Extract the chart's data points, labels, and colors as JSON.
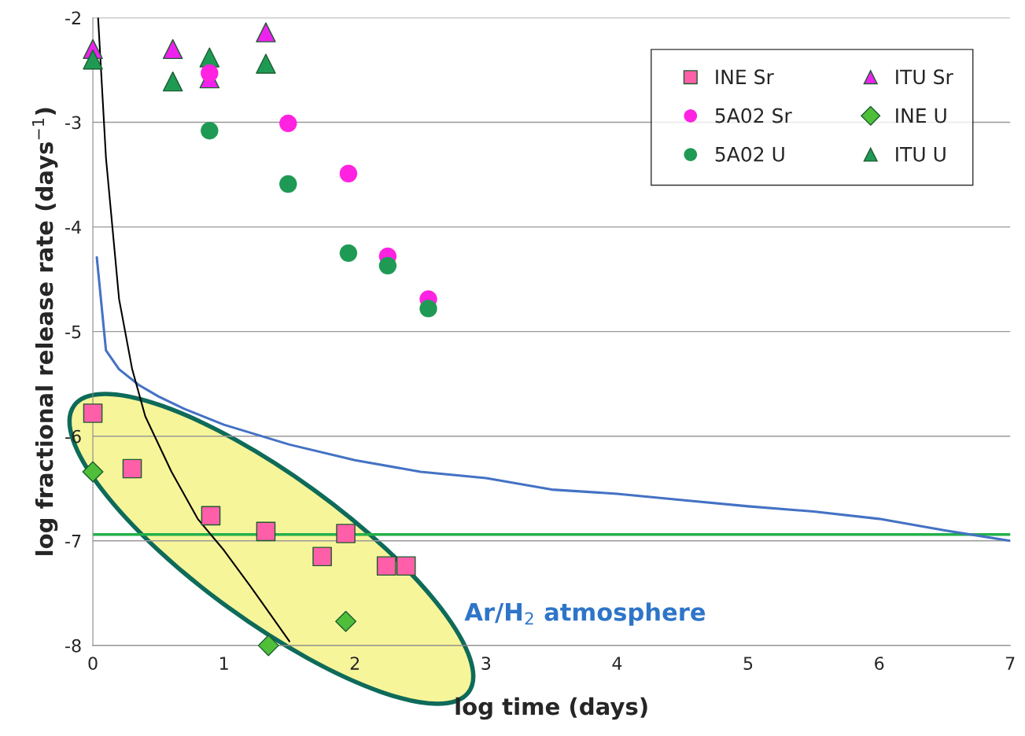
{
  "chart_data": {
    "type": "scatter",
    "xlabel": "log time (days)",
    "ylabel": "log fractional release rate (days$^{−1}$)",
    "xlim": [
      0,
      7
    ],
    "ylim": [
      -8,
      -2
    ],
    "xticks": [
      0,
      1,
      2,
      3,
      4,
      5,
      6,
      7
    ],
    "yticks": [
      -8,
      -7,
      -6,
      -5,
      -4,
      -3,
      -2
    ],
    "grid": "y",
    "legend": "top right",
    "series": [
      {
        "name": "INE Sr",
        "color": "#ff5fa8",
        "marker": "square",
        "x": [
          0,
          0.3,
          0.9,
          1.32,
          1.75,
          1.93,
          2.24,
          2.39
        ],
        "values": [
          -5.78,
          -6.31,
          -6.76,
          -6.91,
          -7.15,
          -6.93,
          -7.24,
          -7.24
        ]
      },
      {
        "name": "5A02 Sr",
        "color": "#ff22e0",
        "marker": "circle",
        "x": [
          0.89,
          1.49,
          1.95,
          2.25,
          2.56
        ],
        "values": [
          -2.53,
          -3.01,
          -3.49,
          -4.28,
          -4.69
        ]
      },
      {
        "name": "5A02 U",
        "color": "#1f9a55",
        "marker": "circle",
        "x": [
          0.89,
          1.49,
          1.95,
          2.25,
          2.56
        ],
        "values": [
          -3.08,
          -3.59,
          -4.25,
          -4.37,
          -4.78
        ]
      },
      {
        "name": "ITU Sr",
        "color": "#ee22ee",
        "marker": "triangle",
        "x": [
          0,
          0.61,
          0.89,
          1.32
        ],
        "values": [
          -2.3,
          -2.3,
          -2.58,
          -2.14
        ]
      },
      {
        "name": "INE U",
        "color": "#4fbf3a",
        "marker": "diamond",
        "x": [
          0,
          1.34,
          1.93
        ],
        "values": [
          -6.34,
          -8.0,
          -7.77
        ]
      },
      {
        "name": "ITU U",
        "color": "#1f9a55",
        "marker": "triangle",
        "x": [
          0,
          0.61,
          0.89,
          1.32
        ],
        "values": [
          -2.4,
          -2.61,
          -2.38,
          -2.44
        ]
      },
      {
        "type": "line",
        "color": "#4472c4",
        "x": [
          0.03,
          0.1,
          0.2,
          0.35,
          0.5,
          0.7,
          1,
          1.5,
          2,
          2.5,
          3,
          3.5,
          4,
          4.5,
          5,
          5.5,
          6,
          6.5,
          7
        ],
        "values": [
          -4.29,
          -5.18,
          -5.36,
          -5.51,
          -5.62,
          -5.74,
          -5.89,
          -6.08,
          -6.23,
          -6.34,
          -6.4,
          -6.51,
          -6.55,
          -6.61,
          -6.67,
          -6.72,
          -6.79,
          -6.9,
          -7.0
        ]
      },
      {
        "type": "line",
        "color": "#000000",
        "x": [
          0.04,
          0.1,
          0.2,
          0.3,
          0.4,
          0.6,
          0.8,
          1.0,
          1.2,
          1.5
        ],
        "values": [
          -2.0,
          -3.34,
          -4.69,
          -5.36,
          -5.81,
          -6.34,
          -6.79,
          -7.09,
          -7.43,
          -7.96
        ]
      }
    ],
    "ref_lines": [
      {
        "axis": "y",
        "value": -6.94,
        "color": "#22b04a"
      }
    ],
    "annotations": [
      "Ar/H$_{2}$ atmosphere"
    ]
  }
}
